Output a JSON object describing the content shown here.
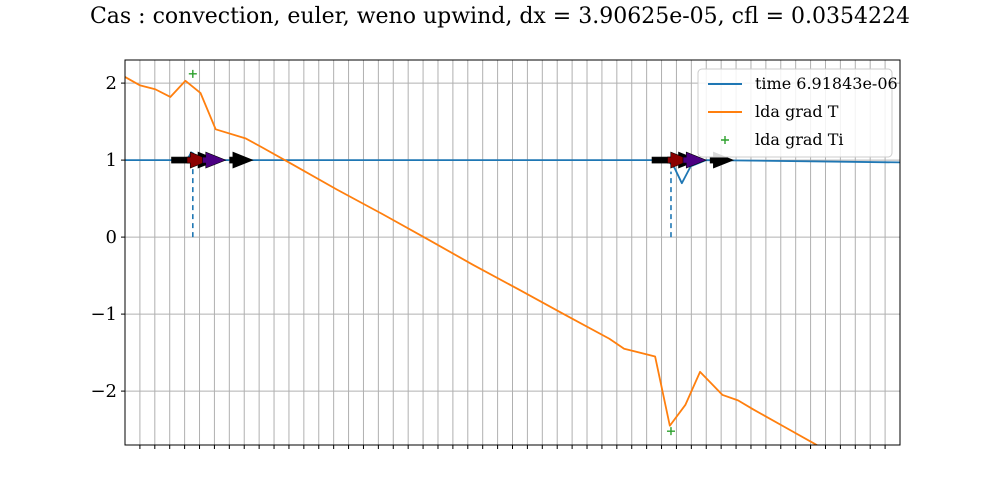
{
  "chart_data": {
    "type": "line",
    "title": "Cas : convection, euler, weno upwind, dx = 3.90625e-05, cfl = 0.0354224",
    "xlim": [
      0,
      1
    ],
    "ylim": [
      -2.7,
      2.3
    ],
    "yticks": [
      -2,
      -1,
      0,
      1,
      2
    ],
    "ytick_labels": [
      "−2",
      "−1",
      "0",
      "1",
      "2"
    ],
    "x_tick_count": 52,
    "x_tick_labels_visible": false,
    "grid": true,
    "legend": "top-right",
    "series": [
      {
        "name": "time 6.91843e-06",
        "color": "#1f77b4",
        "style": "line",
        "x": [
          0.0,
          0.07,
          0.08,
          0.0855,
          0.095,
          0.105,
          0.12,
          0.68,
          0.7,
          0.709,
          0.7185,
          0.73,
          0.75,
          1.0
        ],
        "y": [
          1.0,
          1.0,
          1.0,
          1.1,
          1.03,
          1.0,
          1.0,
          1.0,
          1.0,
          0.9,
          0.7,
          0.92,
          1.0,
          0.97
        ]
      },
      {
        "name": "lda grad T",
        "color": "#ff7f0e",
        "style": "line",
        "x": [
          0.0,
          0.0195,
          0.039,
          0.0585,
          0.078,
          0.0975,
          0.117,
          0.156,
          0.176,
          0.215,
          0.273,
          0.332,
          0.391,
          0.449,
          0.508,
          0.566,
          0.625,
          0.644,
          0.684,
          0.703,
          0.723,
          0.742,
          0.771,
          0.791,
          0.811,
          0.85,
          0.889,
          0.908,
          1.0
        ],
        "y": [
          2.08,
          1.97,
          1.92,
          1.82,
          2.03,
          1.87,
          1.4,
          1.28,
          1.17,
          0.95,
          0.62,
          0.3,
          -0.03,
          -0.36,
          -0.68,
          -1.0,
          -1.32,
          -1.45,
          -1.55,
          -2.45,
          -2.18,
          -1.75,
          -2.05,
          -2.12,
          -2.24,
          -2.46,
          -2.68,
          -2.79,
          -3.3
        ]
      },
      {
        "name": "lda grad Ti",
        "color": "#2ca02c",
        "style": "marker",
        "marker": "+",
        "x": [
          0.0875,
          0.7045
        ],
        "y": [
          2.12,
          -2.52
        ]
      }
    ],
    "interfaces": [
      {
        "x": 0.0875,
        "y_from": 0,
        "y_to": 1.1,
        "color": "#1f77b4",
        "style": "dashed"
      },
      {
        "x": 0.7045,
        "y_from": 0,
        "y_to": 0.85,
        "color": "#1f77b4",
        "style": "dashed"
      }
    ],
    "arrows": [
      {
        "x": 0.06,
        "y": 1.0,
        "dx": 0.06,
        "color": "#000000"
      },
      {
        "x": 0.08,
        "y": 1.0,
        "dx": 0.03,
        "color": "#8b0000"
      },
      {
        "x": 0.1,
        "y": 1.0,
        "dx": 0.03,
        "color": "#4b0082"
      },
      {
        "x": 0.135,
        "y": 1.0,
        "dx": 0.03,
        "color": "#000000"
      },
      {
        "x": 0.68,
        "y": 1.0,
        "dx": 0.06,
        "color": "#000000"
      },
      {
        "x": 0.7,
        "y": 1.0,
        "dx": 0.03,
        "color": "#8b0000"
      },
      {
        "x": 0.72,
        "y": 1.0,
        "dx": 0.03,
        "color": "#4b0082"
      },
      {
        "x": 0.755,
        "y": 1.0,
        "dx": 0.03,
        "color": "#000000"
      }
    ]
  }
}
